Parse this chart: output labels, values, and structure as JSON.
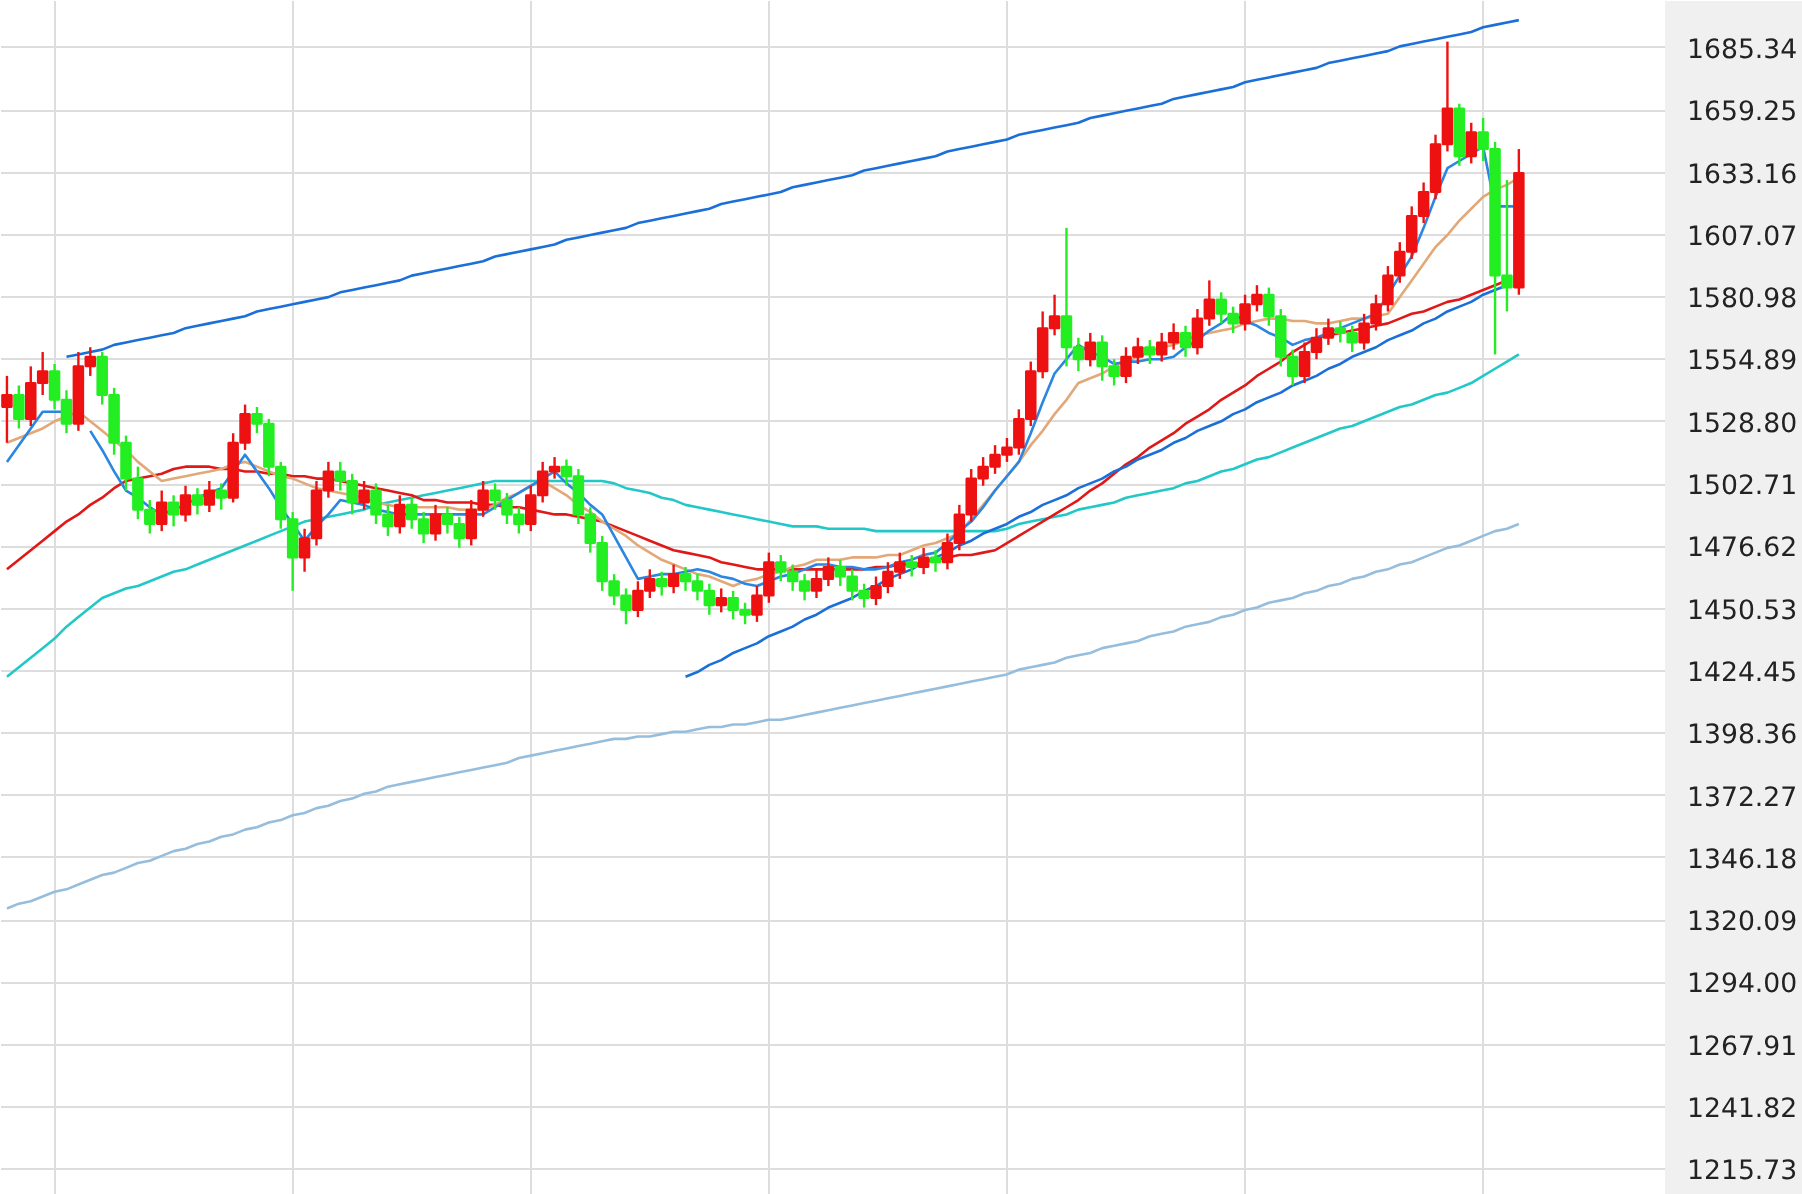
{
  "chart_data": {
    "type": "candlestick",
    "categories": [
      null,
      null,
      null,
      null,
      null,
      null,
      null,
      null,
      null,
      null,
      null,
      null,
      null,
      null,
      null,
      null,
      null,
      null,
      null,
      null,
      null,
      null,
      null,
      null,
      null,
      null,
      null,
      null,
      null,
      null,
      null,
      null,
      null,
      null,
      null,
      null,
      null,
      null,
      null,
      null,
      null,
      null,
      null,
      null,
      null,
      null,
      null,
      null,
      null,
      null,
      null,
      null,
      null,
      null,
      null,
      null,
      null,
      null,
      null,
      null,
      null,
      null,
      null,
      null,
      null,
      null,
      null,
      null,
      null,
      null,
      null,
      null,
      null,
      null,
      null,
      null,
      null,
      null,
      null,
      null,
      null,
      null,
      null,
      null,
      null,
      null,
      null,
      null,
      null,
      null,
      null,
      null,
      null,
      null,
      null,
      null,
      null,
      null,
      null,
      null,
      null,
      null,
      null,
      null,
      null,
      null,
      null,
      null,
      null,
      null,
      null,
      null,
      null,
      null,
      null,
      null,
      null,
      null,
      null,
      null,
      null,
      null,
      null,
      null,
      null,
      null,
      null,
      null
    ],
    "ohlc": [
      [
        1535,
        1548,
        1520,
        1540
      ],
      [
        1540,
        1544,
        1526,
        1530
      ],
      [
        1530,
        1552,
        1527,
        1545
      ],
      [
        1545,
        1558,
        1540,
        1550
      ],
      [
        1550,
        1553,
        1534,
        1538
      ],
      [
        1538,
        1542,
        1524,
        1528
      ],
      [
        1528,
        1558,
        1525,
        1552
      ],
      [
        1552,
        1560,
        1548,
        1556
      ],
      [
        1556,
        1558,
        1536,
        1540
      ],
      [
        1540,
        1543,
        1515,
        1520
      ],
      [
        1520,
        1523,
        1500,
        1505
      ],
      [
        1505,
        1510,
        1488,
        1492
      ],
      [
        1492,
        1496,
        1482,
        1486
      ],
      [
        1486,
        1500,
        1483,
        1495
      ],
      [
        1495,
        1498,
        1485,
        1490
      ],
      [
        1490,
        1502,
        1487,
        1498
      ],
      [
        1498,
        1501,
        1490,
        1494
      ],
      [
        1494,
        1504,
        1491,
        1500
      ],
      [
        1500,
        1503,
        1492,
        1497
      ],
      [
        1497,
        1524,
        1495,
        1520
      ],
      [
        1520,
        1536,
        1517,
        1532
      ],
      [
        1532,
        1535,
        1524,
        1528
      ],
      [
        1528,
        1530,
        1506,
        1510
      ],
      [
        1510,
        1512,
        1484,
        1488
      ],
      [
        1488,
        1491,
        1458,
        1472
      ],
      [
        1472,
        1484,
        1466,
        1480
      ],
      [
        1480,
        1504,
        1477,
        1500
      ],
      [
        1500,
        1512,
        1497,
        1508
      ],
      [
        1508,
        1512,
        1500,
        1504
      ],
      [
        1504,
        1507,
        1490,
        1495
      ],
      [
        1495,
        1504,
        1492,
        1500
      ],
      [
        1500,
        1503,
        1486,
        1490
      ],
      [
        1490,
        1494,
        1481,
        1485
      ],
      [
        1485,
        1498,
        1482,
        1494
      ],
      [
        1494,
        1497,
        1484,
        1488
      ],
      [
        1488,
        1491,
        1478,
        1482
      ],
      [
        1482,
        1494,
        1479,
        1490
      ],
      [
        1490,
        1493,
        1482,
        1486
      ],
      [
        1486,
        1489,
        1476,
        1480
      ],
      [
        1480,
        1496,
        1477,
        1492
      ],
      [
        1492,
        1504,
        1489,
        1500
      ],
      [
        1500,
        1503,
        1492,
        1496
      ],
      [
        1496,
        1499,
        1486,
        1490
      ],
      [
        1490,
        1493,
        1482,
        1486
      ],
      [
        1486,
        1502,
        1483,
        1498
      ],
      [
        1498,
        1512,
        1495,
        1508
      ],
      [
        1508,
        1514,
        1505,
        1510
      ],
      [
        1510,
        1513,
        1502,
        1506
      ],
      [
        1506,
        1509,
        1486,
        1490
      ],
      [
        1490,
        1493,
        1474,
        1478
      ],
      [
        1478,
        1481,
        1458,
        1462
      ],
      [
        1462,
        1465,
        1452,
        1456
      ],
      [
        1456,
        1459,
        1444,
        1450
      ],
      [
        1450,
        1462,
        1447,
        1458
      ],
      [
        1458,
        1467,
        1455,
        1463
      ],
      [
        1463,
        1466,
        1456,
        1460
      ],
      [
        1460,
        1469,
        1457,
        1465
      ],
      [
        1465,
        1468,
        1458,
        1462
      ],
      [
        1462,
        1465,
        1454,
        1458
      ],
      [
        1458,
        1461,
        1448,
        1452
      ],
      [
        1452,
        1459,
        1449,
        1455
      ],
      [
        1455,
        1458,
        1446,
        1450
      ],
      [
        1450,
        1453,
        1444,
        1448
      ],
      [
        1448,
        1460,
        1445,
        1456
      ],
      [
        1456,
        1474,
        1453,
        1470
      ],
      [
        1470,
        1473,
        1462,
        1466
      ],
      [
        1466,
        1469,
        1458,
        1462
      ],
      [
        1462,
        1465,
        1454,
        1458
      ],
      [
        1458,
        1467,
        1455,
        1463
      ],
      [
        1463,
        1472,
        1460,
        1468
      ],
      [
        1468,
        1471,
        1460,
        1464
      ],
      [
        1464,
        1467,
        1454,
        1458
      ],
      [
        1458,
        1461,
        1451,
        1455
      ],
      [
        1455,
        1464,
        1452,
        1460
      ],
      [
        1460,
        1470,
        1457,
        1466
      ],
      [
        1466,
        1474,
        1463,
        1470
      ],
      [
        1470,
        1473,
        1464,
        1468
      ],
      [
        1468,
        1476,
        1465,
        1472
      ],
      [
        1472,
        1475,
        1466,
        1470
      ],
      [
        1470,
        1482,
        1467,
        1478
      ],
      [
        1478,
        1494,
        1475,
        1490
      ],
      [
        1490,
        1509,
        1487,
        1505
      ],
      [
        1505,
        1514,
        1502,
        1510
      ],
      [
        1510,
        1519,
        1507,
        1515
      ],
      [
        1515,
        1522,
        1512,
        1518
      ],
      [
        1518,
        1534,
        1515,
        1530
      ],
      [
        1530,
        1554,
        1527,
        1550
      ],
      [
        1550,
        1575,
        1547,
        1568
      ],
      [
        1568,
        1582,
        1565,
        1573
      ],
      [
        1573,
        1610,
        1552,
        1560
      ],
      [
        1560,
        1564,
        1550,
        1555
      ],
      [
        1555,
        1566,
        1552,
        1562
      ],
      [
        1562,
        1565,
        1546,
        1552
      ],
      [
        1552,
        1555,
        1544,
        1548
      ],
      [
        1548,
        1560,
        1545,
        1556
      ],
      [
        1556,
        1564,
        1553,
        1560
      ],
      [
        1560,
        1563,
        1553,
        1557
      ],
      [
        1557,
        1566,
        1554,
        1562
      ],
      [
        1562,
        1570,
        1559,
        1566
      ],
      [
        1566,
        1569,
        1556,
        1560
      ],
      [
        1560,
        1576,
        1557,
        1572
      ],
      [
        1572,
        1588,
        1569,
        1580
      ],
      [
        1580,
        1583,
        1570,
        1574
      ],
      [
        1574,
        1577,
        1566,
        1570
      ],
      [
        1570,
        1582,
        1567,
        1578
      ],
      [
        1578,
        1586,
        1575,
        1582
      ],
      [
        1582,
        1585,
        1569,
        1573
      ],
      [
        1573,
        1576,
        1552,
        1556
      ],
      [
        1556,
        1559,
        1544,
        1548
      ],
      [
        1548,
        1562,
        1545,
        1558
      ],
      [
        1558,
        1568,
        1555,
        1564
      ],
      [
        1564,
        1572,
        1561,
        1568
      ],
      [
        1568,
        1571,
        1562,
        1566
      ],
      [
        1566,
        1569,
        1558,
        1562
      ],
      [
        1562,
        1574,
        1559,
        1570
      ],
      [
        1570,
        1582,
        1567,
        1578
      ],
      [
        1578,
        1594,
        1575,
        1590
      ],
      [
        1590,
        1604,
        1587,
        1600
      ],
      [
        1600,
        1619,
        1597,
        1615
      ],
      [
        1615,
        1629,
        1612,
        1625
      ],
      [
        1625,
        1649,
        1622,
        1645
      ],
      [
        1645,
        1688,
        1642,
        1660
      ],
      [
        1660,
        1662,
        1636,
        1640
      ],
      [
        1640,
        1654,
        1637,
        1650
      ],
      [
        1650,
        1656,
        1638,
        1643
      ],
      [
        1643,
        1646,
        1557,
        1590
      ],
      [
        1590,
        1630,
        1575,
        1585
      ],
      [
        1585,
        1643,
        1582,
        1633
      ]
    ],
    "colors": [
      "#ee1111",
      "#22ee22",
      "#ee1111",
      "#ee1111",
      "#22ee22",
      "#22ee22",
      "#ee1111",
      "#ee1111",
      "#22ee22",
      "#22ee22",
      "#22ee22",
      "#22ee22",
      "#22ee22",
      "#ee1111",
      "#22ee22",
      "#ee1111",
      "#22ee22",
      "#ee1111",
      "#22ee22",
      "#ee1111",
      "#ee1111",
      "#22ee22",
      "#22ee22",
      "#22ee22",
      "#22ee22",
      "#ee1111",
      "#ee1111",
      "#ee1111",
      "#22ee22",
      "#22ee22",
      "#ee1111",
      "#22ee22",
      "#22ee22",
      "#ee1111",
      "#22ee22",
      "#22ee22",
      "#ee1111",
      "#22ee22",
      "#22ee22",
      "#ee1111",
      "#ee1111",
      "#22ee22",
      "#22ee22",
      "#22ee22",
      "#ee1111",
      "#ee1111",
      "#ee1111",
      "#22ee22",
      "#22ee22",
      "#22ee22",
      "#22ee22",
      "#22ee22",
      "#22ee22",
      "#ee1111",
      "#ee1111",
      "#22ee22",
      "#ee1111",
      "#22ee22",
      "#22ee22",
      "#22ee22",
      "#ee1111",
      "#22ee22",
      "#22ee22",
      "#ee1111",
      "#ee1111",
      "#22ee22",
      "#22ee22",
      "#22ee22",
      "#ee1111",
      "#ee1111",
      "#22ee22",
      "#22ee22",
      "#22ee22",
      "#ee1111",
      "#ee1111",
      "#ee1111",
      "#22ee22",
      "#ee1111",
      "#22ee22",
      "#ee1111",
      "#ee1111",
      "#ee1111",
      "#ee1111",
      "#ee1111",
      "#ee1111",
      "#ee1111",
      "#ee1111",
      "#ee1111",
      "#ee1111",
      "#22ee22",
      "#22ee22",
      "#ee1111",
      "#22ee22",
      "#22ee22",
      "#ee1111",
      "#ee1111",
      "#22ee22",
      "#ee1111",
      "#ee1111",
      "#22ee22",
      "#ee1111",
      "#ee1111",
      "#22ee22",
      "#22ee22",
      "#ee1111",
      "#ee1111",
      "#22ee22",
      "#22ee22",
      "#22ee22",
      "#ee1111",
      "#ee1111",
      "#ee1111",
      "#22ee22",
      "#22ee22",
      "#ee1111",
      "#ee1111",
      "#ee1111",
      "#ee1111",
      "#ee1111",
      "#ee1111",
      "#ee1111",
      "#ee1111",
      "#22ee22",
      "#ee1111",
      "#22ee22",
      "#22ee22",
      "#22ee22",
      "#ee1111"
    ],
    "series": [
      {
        "type": "line",
        "color": "#96bedc",
        "values": [
          1325,
          1327,
          1328,
          1330,
          1332,
          1333,
          1335,
          1337,
          1339,
          1340,
          1342,
          1344,
          1345,
          1347,
          1349,
          1350,
          1352,
          1353,
          1355,
          1356,
          1358,
          1359,
          1361,
          1362,
          1364,
          1365,
          1367,
          1368,
          1370,
          1371,
          1373,
          1374,
          1376,
          1377,
          1378,
          1379,
          1380,
          1381,
          1382,
          1383,
          1384,
          1385,
          1386,
          1388,
          1389,
          1390,
          1391,
          1392,
          1393,
          1394,
          1395,
          1396,
          1396,
          1397,
          1397,
          1398,
          1399,
          1399,
          1400,
          1401,
          1401,
          1402,
          1402,
          1403,
          1404,
          1404,
          1405,
          1406,
          1407,
          1408,
          1409,
          1410,
          1411,
          1412,
          1413,
          1414,
          1415,
          1416,
          1417,
          1418,
          1419,
          1420,
          1421,
          1422,
          1423,
          1425,
          1426,
          1427,
          1428,
          1430,
          1431,
          1432,
          1434,
          1435,
          1436,
          1437,
          1439,
          1440,
          1441,
          1443,
          1444,
          1445,
          1447,
          1448,
          1450,
          1451,
          1453,
          1454,
          1455,
          1457,
          1458,
          1460,
          1461,
          1463,
          1464,
          1466,
          1467,
          1469,
          1470,
          1472,
          1474,
          1476,
          1477,
          1479,
          1481,
          1483,
          1484,
          1486
        ]
      },
      {
        "type": "line",
        "color": "#22c8c8",
        "values": [
          1422,
          1426,
          1430,
          1434,
          1438,
          1443,
          1447,
          1451,
          1455,
          1457,
          1459,
          1460,
          1462,
          1464,
          1466,
          1467,
          1469,
          1471,
          1473,
          1475,
          1477,
          1479,
          1481,
          1483,
          1485,
          1487,
          1488,
          1489,
          1490,
          1491,
          1492,
          1494,
          1495,
          1496,
          1497,
          1498,
          1499,
          1500,
          1501,
          1502,
          1503,
          1504,
          1504,
          1504,
          1504,
          1504,
          1504,
          1504,
          1504,
          1504,
          1504,
          1503,
          1501,
          1500,
          1499,
          1497,
          1496,
          1494,
          1493,
          1492,
          1491,
          1490,
          1489,
          1488,
          1487,
          1486,
          1485,
          1485,
          1485,
          1484,
          1484,
          1484,
          1484,
          1483,
          1483,
          1483,
          1483,
          1483,
          1483,
          1483,
          1483,
          1483,
          1483,
          1483,
          1484,
          1486,
          1487,
          1488,
          1489,
          1490,
          1492,
          1493,
          1494,
          1495,
          1497,
          1498,
          1499,
          1500,
          1501,
          1503,
          1504,
          1506,
          1508,
          1509,
          1511,
          1513,
          1514,
          1516,
          1518,
          1520,
          1522,
          1524,
          1526,
          1527,
          1529,
          1531,
          1533,
          1535,
          1536,
          1538,
          1540,
          1541,
          1543,
          1545,
          1548,
          1551,
          1554,
          1557
        ]
      },
      {
        "type": "line",
        "color": "#e01818",
        "values": [
          1467,
          1471,
          1475,
          1479,
          1483,
          1487,
          1490,
          1494,
          1497,
          1501,
          1504,
          1505,
          1506,
          1507,
          1509,
          1510,
          1510,
          1510,
          1509,
          1509,
          1508,
          1508,
          1507,
          1507,
          1506,
          1506,
          1505,
          1505,
          1504,
          1503,
          1502,
          1501,
          1500,
          1499,
          1498,
          1496,
          1496,
          1495,
          1495,
          1495,
          1494,
          1494,
          1493,
          1493,
          1492,
          1491,
          1490,
          1490,
          1489,
          1488,
          1487,
          1485,
          1483,
          1481,
          1479,
          1477,
          1475,
          1474,
          1473,
          1472,
          1470,
          1469,
          1468,
          1467,
          1467,
          1467,
          1467,
          1467,
          1467,
          1467,
          1467,
          1467,
          1467,
          1468,
          1468,
          1469,
          1469,
          1470,
          1471,
          1472,
          1473,
          1473,
          1474,
          1475,
          1478,
          1481,
          1484,
          1487,
          1490,
          1493,
          1496,
          1500,
          1503,
          1507,
          1511,
          1514,
          1518,
          1521,
          1524,
          1528,
          1531,
          1534,
          1538,
          1541,
          1544,
          1548,
          1551,
          1554,
          1558,
          1561,
          1564,
          1565,
          1566,
          1567,
          1568,
          1569,
          1570,
          1572,
          1574,
          1575,
          1577,
          1579,
          1580,
          1582,
          1584,
          1586,
          1588,
          null
        ]
      },
      {
        "type": "line",
        "color": "#e2a878",
        "values": [
          1520,
          1522,
          1524,
          1526,
          1529,
          1531,
          1533,
          1529,
          1525,
          1521,
          1517,
          1512,
          1508,
          1504,
          1505,
          1506,
          1507,
          1508,
          1509,
          1511,
          1512,
          1510,
          1508,
          1506,
          1505,
          1503,
          1501,
          1500,
          1499,
          1498,
          1497,
          1495,
          1494,
          1493,
          1493,
          1493,
          1493,
          1493,
          1492,
          1492,
          1492,
          1494,
          1497,
          1499,
          1502,
          1504,
          1501,
          1498,
          1494,
          1491,
          1487,
          1484,
          1481,
          1477,
          1474,
          1471,
          1469,
          1467,
          1465,
          1464,
          1462,
          1460,
          1462,
          1463,
          1465,
          1466,
          1468,
          1469,
          1471,
          1471,
          1471,
          1472,
          1472,
          1472,
          1473,
          1473,
          1475,
          1477,
          1478,
          1480,
          1482,
          1488,
          1494,
          1500,
          1506,
          1512,
          1519,
          1525,
          1532,
          1538,
          1545,
          1547,
          1549,
          1552,
          1554,
          1556,
          1558,
          1560,
          1561,
          1563,
          1565,
          1566,
          1567,
          1568,
          1570,
          1571,
          1572,
          1572,
          1571,
          1571,
          1570,
          1570,
          1571,
          1572,
          1572,
          1573,
          1574,
          1581,
          1588,
          1595,
          1602,
          1607,
          1613,
          1618,
          1623,
          1626,
          1628,
          1631
        ]
      },
      {
        "type": "line",
        "color": "#2a86e0",
        "values": [
          1512,
          1519,
          1526,
          1533,
          1533,
          1533,
          null,
          1525,
          1517,
          1508,
          1500,
          1497,
          1493,
          1490,
          1492,
          1494,
          1497,
          1499,
          1501,
          1508,
          1515,
          1508,
          1501,
          1493,
          1486,
          1479,
          1485,
          1490,
          1496,
          1495,
          1494,
          1492,
          1491,
          1490,
          1490,
          1490,
          1490,
          1490,
          1490,
          1490,
          1490,
          1493,
          1496,
          1499,
          1502,
          1505,
          1508,
          1503,
          1499,
          1494,
          1490,
          1481,
          1472,
          1463,
          1464,
          1465,
          1465,
          1466,
          1467,
          1466,
          1464,
          1463,
          1461,
          1460,
          1462,
          1464,
          1465,
          1467,
          1469,
          1469,
          1468,
          1468,
          1467,
          1467,
          1468,
          1470,
          1471,
          1473,
          1474,
          1478,
          1483,
          1487,
          1493,
          1500,
          1506,
          1512,
          1524,
          1537,
          1549,
          1555,
          1561,
          1558,
          1556,
          1553,
          1554,
          1554,
          1555,
          1555,
          1556,
          1560,
          1563,
          1567,
          1570,
          1574,
          1571,
          1569,
          1566,
          1564,
          1561,
          1563,
          1564,
          1566,
          1568,
          1570,
          1572,
          1574,
          1582,
          1590,
          1598,
          1610,
          1623,
          1635,
          1638,
          1641,
          1644,
          1619,
          1619,
          1619
        ]
      },
      {
        "type": "line",
        "color": "#1a6fd8",
        "values": [
          null,
          null,
          null,
          null,
          null,
          1556,
          1557,
          1558,
          1559,
          1561,
          1562,
          1563,
          1564,
          1565,
          1566,
          1568,
          1569,
          1570,
          1571,
          1572,
          1573,
          1575,
          1576,
          1577,
          1578,
          1579,
          1580,
          1581,
          1583,
          1584,
          1585,
          1586,
          1587,
          1588,
          1590,
          1591,
          1592,
          1593,
          1594,
          1595,
          1596,
          1598,
          1599,
          1600,
          1601,
          1602,
          1603,
          1605,
          1606,
          1607,
          1608,
          1609,
          1610,
          1612,
          1613,
          1614,
          1615,
          1616,
          1617,
          1618,
          1620,
          1621,
          1622,
          1623,
          1624,
          1625,
          1627,
          1628,
          1629,
          1630,
          1631,
          1632,
          1634,
          1635,
          1636,
          1637,
          1638,
          1639,
          1640,
          1642,
          1643,
          1644,
          1645,
          1646,
          1647,
          1649,
          1650,
          1651,
          1652,
          1653,
          1654,
          1656,
          1657,
          1658,
          1659,
          1660,
          1661,
          1662,
          1664,
          1665,
          1666,
          1667,
          1668,
          1669,
          1671,
          1672,
          1673,
          1674,
          1675,
          1676,
          1677,
          1679,
          1680,
          1681,
          1682,
          1683,
          1684,
          1686,
          1687,
          1688,
          1689,
          1690,
          1691,
          1692,
          1694,
          1695,
          1696,
          1697
        ]
      },
      {
        "type": "line",
        "color": "#1a6fd8",
        "values": [
          null,
          null,
          null,
          null,
          null,
          null,
          null,
          null,
          null,
          null,
          null,
          null,
          null,
          null,
          null,
          null,
          null,
          null,
          null,
          null,
          null,
          null,
          null,
          null,
          null,
          null,
          null,
          null,
          null,
          null,
          null,
          null,
          null,
          null,
          null,
          null,
          null,
          null,
          null,
          null,
          null,
          null,
          null,
          null,
          null,
          null,
          null,
          null,
          null,
          null,
          null,
          null,
          null,
          null,
          null,
          null,
          null,
          1422,
          1424,
          1427,
          1429,
          1432,
          1434,
          1436,
          1439,
          1441,
          1443,
          1446,
          1448,
          1451,
          1453,
          1455,
          1458,
          1460,
          1463,
          1465,
          1467,
          1470,
          1472,
          1474,
          1477,
          1479,
          1482,
          1484,
          1486,
          1489,
          1491,
          1494,
          1496,
          1498,
          1501,
          1503,
          1505,
          1508,
          1510,
          1513,
          1515,
          1517,
          1520,
          1522,
          1525,
          1527,
          1529,
          1532,
          1534,
          1537,
          1539,
          1541,
          1544,
          1546,
          1548,
          1551,
          1553,
          1556,
          1558,
          1560,
          1563,
          1565,
          1567,
          1570,
          1572,
          1575,
          1577,
          1579,
          1582,
          1584,
          1586,
          null
        ]
      }
    ],
    "ylim": [
      1205,
      1705
    ],
    "yticks": [
      1685.34,
      1659.25,
      1633.16,
      1607.07,
      1580.98,
      1554.89,
      {
        "value": 1528.8,
        "label": "1528.80"
      },
      1502.71,
      1476.62,
      1450.53,
      1424.45,
      1398.36,
      1372.27,
      1346.18,
      1320.09,
      {
        "value": 1294,
        "label": "1294.00"
      },
      1267.91,
      1241.82,
      1215.73
    ],
    "tick_labels": "y",
    "grid": true
  }
}
